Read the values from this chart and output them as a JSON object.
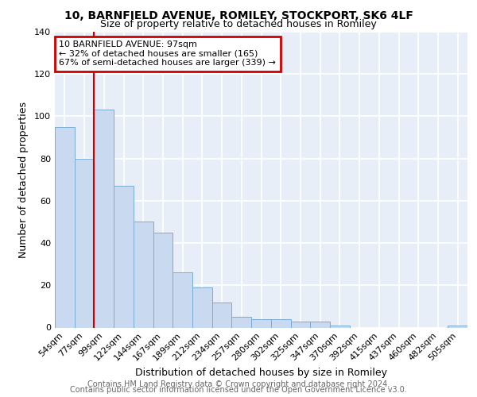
{
  "title1": "10, BARNFIELD AVENUE, ROMILEY, STOCKPORT, SK6 4LF",
  "title2": "Size of property relative to detached houses in Romiley",
  "xlabel": "Distribution of detached houses by size in Romiley",
  "ylabel": "Number of detached properties",
  "footnote1": "Contains HM Land Registry data © Crown copyright and database right 2024.",
  "footnote2": "Contains public sector information licensed under the Open Government Licence v3.0.",
  "bar_labels": [
    "54sqm",
    "77sqm",
    "99sqm",
    "122sqm",
    "144sqm",
    "167sqm",
    "189sqm",
    "212sqm",
    "234sqm",
    "257sqm",
    "280sqm",
    "302sqm",
    "325sqm",
    "347sqm",
    "370sqm",
    "392sqm",
    "415sqm",
    "437sqm",
    "460sqm",
    "482sqm",
    "505sqm"
  ],
  "bar_values": [
    95,
    80,
    103,
    67,
    50,
    45,
    26,
    19,
    12,
    5,
    4,
    4,
    3,
    3,
    1,
    0,
    0,
    0,
    0,
    0,
    1
  ],
  "bar_color": "#c8d9f0",
  "bar_edge_color": "#7aadd4",
  "property_line_x": 2.0,
  "annotation_text": "10 BARNFIELD AVENUE: 97sqm\n← 32% of detached houses are smaller (165)\n67% of semi-detached houses are larger (339) →",
  "annotation_box_color": "#ffffff",
  "annotation_box_edge": "#cc0000",
  "property_line_color": "#cc0000",
  "bg_color": "#ffffff",
  "plot_bg_color": "#e8eef8",
  "ylim": [
    0,
    140
  ],
  "yticks": [
    0,
    20,
    40,
    60,
    80,
    100,
    120,
    140
  ],
  "grid_color": "#ffffff",
  "title1_fontsize": 10,
  "title2_fontsize": 9,
  "xlabel_fontsize": 9,
  "ylabel_fontsize": 9,
  "tick_fontsize": 8,
  "annotation_fontsize": 8,
  "footnote_fontsize": 7
}
